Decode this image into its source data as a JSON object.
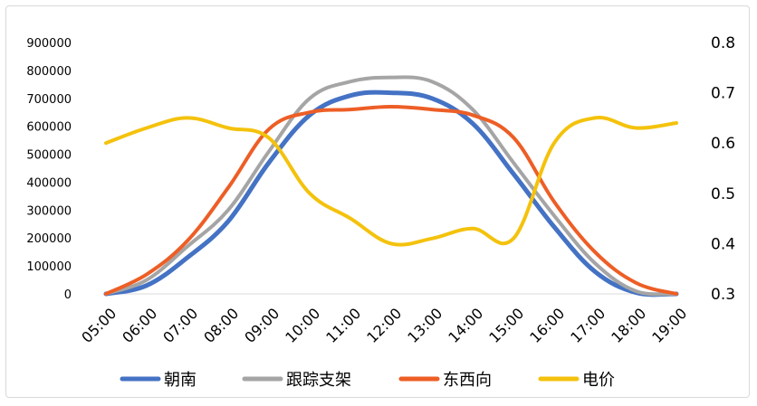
{
  "chart_data": {
    "type": "line",
    "title": "",
    "xlabel": "",
    "ylabel": "",
    "categories": [
      "05:00",
      "06:00",
      "07:00",
      "08:00",
      "09:00",
      "10:00",
      "11:00",
      "12:00",
      "13:00",
      "14:00",
      "15:00",
      "16:00",
      "17:00",
      "18:00",
      "19:00"
    ],
    "y_left": {
      "range": [
        0,
        900000
      ],
      "ticks": [
        "0",
        "100000",
        "200000",
        "300000",
        "400000",
        "500000",
        "600000",
        "700000",
        "800000",
        "900000"
      ]
    },
    "y_right": {
      "range": [
        0.3,
        0.8
      ],
      "ticks": [
        "0.3",
        "0.4",
        "0.5",
        "0.6",
        "0.7",
        "0.8"
      ]
    },
    "series": [
      {
        "name": "朝南",
        "axis": "left",
        "color": "#4472C4",
        "values": [
          0,
          30000,
          130000,
          260000,
          470000,
          640000,
          710000,
          720000,
          700000,
          610000,
          430000,
          240000,
          80000,
          5000,
          0
        ]
      },
      {
        "name": "跟踪支架",
        "axis": "left",
        "color": "#A5A5A5",
        "values": [
          0,
          50000,
          170000,
          300000,
          510000,
          700000,
          760000,
          775000,
          760000,
          660000,
          470000,
          280000,
          110000,
          10000,
          0
        ]
      },
      {
        "name": "东西向",
        "axis": "left",
        "color": "#ED5E26",
        "values": [
          0,
          70000,
          190000,
          380000,
          590000,
          650000,
          660000,
          670000,
          660000,
          640000,
          560000,
          330000,
          150000,
          40000,
          0
        ]
      },
      {
        "name": "电价",
        "axis": "right",
        "color": "#F4C20D",
        "values": [
          0.6,
          0.63,
          0.65,
          0.63,
          0.61,
          0.5,
          0.45,
          0.4,
          0.41,
          0.43,
          0.41,
          0.6,
          0.65,
          0.63,
          0.64
        ]
      }
    ],
    "legend_position": "bottom",
    "grid": false
  }
}
